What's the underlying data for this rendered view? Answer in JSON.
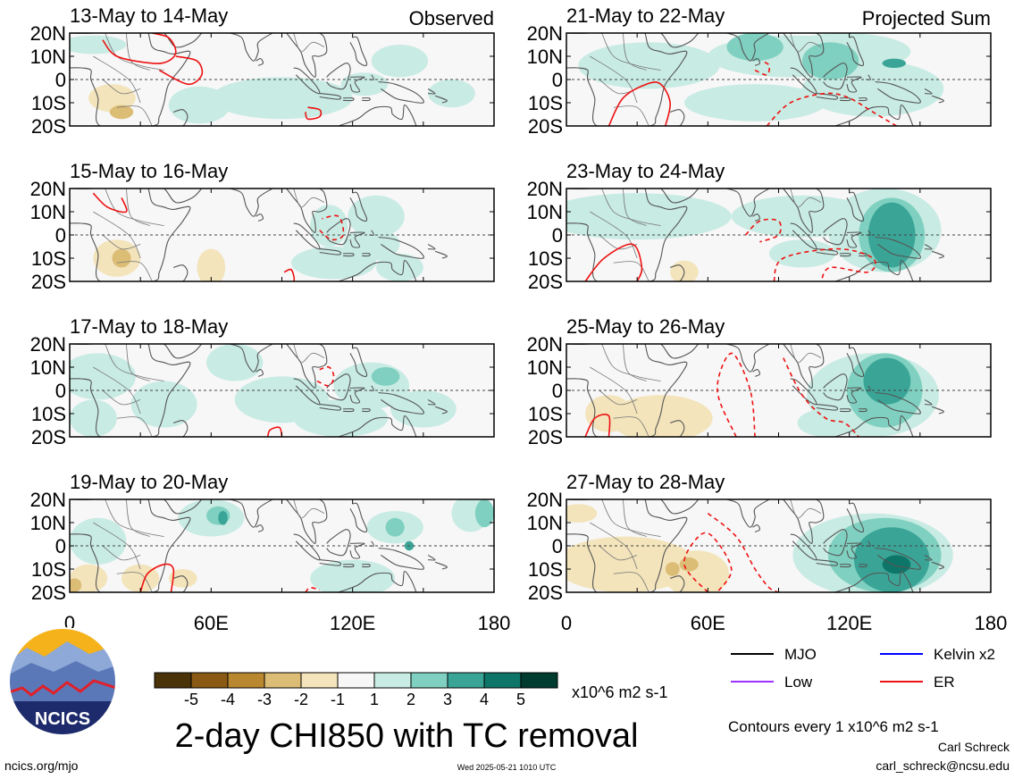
{
  "chart_data": {
    "type": "heatmap",
    "title": "2-day CHI850 with TC removal",
    "field_units": "x10^6 m2 s-1",
    "contour_note": "Contours every 1 x10^6 m2 s-1",
    "x_axis": {
      "range": [
        0,
        180
      ],
      "ticks": [
        "0",
        "60E",
        "120E",
        "180"
      ]
    },
    "y_axis": {
      "range": [
        -20,
        20
      ],
      "ticks": [
        "20N",
        "10N",
        "0",
        "10S",
        "20S"
      ]
    },
    "column_headers": {
      "left": "Observed",
      "right": "Projected Sum"
    },
    "colorbar": {
      "labels": [
        "-5",
        "-4",
        "-3",
        "-2",
        "-1",
        "1",
        "2",
        "3",
        "4",
        "5"
      ],
      "colors": [
        "#4a3209",
        "#8a5a14",
        "#b9872f",
        "#dcbd76",
        "#f3e4bb",
        "#f7f7f7",
        "#c8ebe3",
        "#7fd0c0",
        "#3aa597",
        "#0e7569",
        "#003c30"
      ]
    },
    "legend": [
      {
        "label": "MJO",
        "color": "#000000"
      },
      {
        "label": "Kelvin x2",
        "color": "#0000ff"
      },
      {
        "label": "Low",
        "color": "#9b30ff"
      },
      {
        "label": "ER",
        "color": "#ee1111"
      }
    ],
    "panels": [
      {
        "period": "13-May to 14-May",
        "header": "Observed",
        "blobs": [
          [
            10,
            15,
            14,
            4,
            1
          ],
          [
            55,
            -11,
            13,
            8,
            1
          ],
          [
            90,
            -8,
            30,
            9,
            1
          ],
          [
            140,
            8,
            12,
            7,
            1
          ],
          [
            162,
            -6,
            10,
            6,
            1
          ],
          [
            125,
            -2,
            10,
            5,
            1
          ],
          [
            18,
            -8,
            10,
            6,
            -1
          ],
          [
            22,
            -14,
            5,
            3,
            -2
          ]
        ],
        "contours": [
          {
            "type": "ER",
            "dashed": false,
            "pts": [
              [
                14,
                17
              ],
              [
                20,
                10
              ],
              [
                35,
                7
              ],
              [
                42,
                8
              ],
              [
                45,
                12
              ],
              [
                42,
                18
              ],
              [
                35,
                20
              ]
            ]
          },
          {
            "type": "ER",
            "dashed": false,
            "pts": [
              [
                38,
                4
              ],
              [
                50,
                -2
              ],
              [
                56,
                2
              ],
              [
                54,
                8
              ],
              [
                45,
                10
              ]
            ]
          },
          {
            "type": "ER",
            "dashed": false,
            "pts": [
              [
                101,
                -12
              ],
              [
                106,
                -13
              ],
              [
                106,
                -16
              ],
              [
                101,
                -17
              ],
              [
                100,
                -14
              ]
            ]
          }
        ]
      },
      {
        "period": "15-May to 16-May",
        "header": "",
        "blobs": [
          [
            110,
            4,
            8,
            9,
            1
          ],
          [
            130,
            8,
            12,
            9,
            1
          ],
          [
            128,
            -4,
            12,
            7,
            1
          ],
          [
            112,
            -12,
            18,
            7,
            1
          ],
          [
            140,
            -14,
            10,
            6,
            1
          ],
          [
            20,
            -10,
            10,
            8,
            -1
          ],
          [
            22,
            -10,
            4,
            4,
            -2
          ],
          [
            60,
            -14,
            6,
            8,
            -1
          ]
        ],
        "contours": [
          {
            "type": "ER",
            "dashed": false,
            "pts": [
              [
                10,
                18
              ],
              [
                16,
                12
              ],
              [
                24,
                10
              ],
              [
                22,
                16
              ]
            ]
          },
          {
            "type": "ER",
            "dashed": true,
            "pts": [
              [
                106,
                2
              ],
              [
                111,
                -2
              ],
              [
                116,
                0
              ],
              [
                114,
                8
              ],
              [
                107,
                7
              ]
            ]
          },
          {
            "type": "ER",
            "dashed": false,
            "pts": [
              [
                91,
                -16
              ],
              [
                94,
                -15
              ],
              [
                95,
                -20
              ],
              [
                90,
                -20
              ]
            ]
          }
        ]
      },
      {
        "period": "17-May to 18-May",
        "header": "",
        "blobs": [
          [
            12,
            6,
            16,
            10,
            1
          ],
          [
            10,
            -12,
            10,
            8,
            1
          ],
          [
            40,
            -6,
            14,
            10,
            1
          ],
          [
            70,
            12,
            12,
            8,
            1
          ],
          [
            90,
            -4,
            20,
            10,
            1
          ],
          [
            128,
            2,
            16,
            10,
            1
          ],
          [
            134,
            6,
            6,
            4,
            2
          ],
          [
            115,
            -12,
            20,
            8,
            1
          ],
          [
            150,
            -8,
            14,
            8,
            1
          ]
        ],
        "contours": [
          {
            "type": "ER",
            "dashed": true,
            "pts": [
              [
                105,
                4
              ],
              [
                110,
                2
              ],
              [
                112,
                6
              ],
              [
                110,
                10
              ],
              [
                106,
                9
              ]
            ]
          },
          {
            "type": "ER",
            "dashed": false,
            "pts": [
              [
                84,
                -20
              ],
              [
                85,
                -17
              ],
              [
                89,
                -16
              ],
              [
                90,
                -20
              ]
            ]
          }
        ]
      },
      {
        "period": "19-May to 20-May",
        "header": "",
        "blobs": [
          [
            60,
            12,
            14,
            8,
            1
          ],
          [
            63,
            13,
            5,
            4,
            2
          ],
          [
            65,
            12,
            2,
            3,
            3
          ],
          [
            12,
            2,
            12,
            10,
            1
          ],
          [
            138,
            8,
            12,
            7,
            1
          ],
          [
            138,
            8,
            4,
            4,
            2
          ],
          [
            144,
            0,
            2,
            2,
            3
          ],
          [
            120,
            -14,
            18,
            8,
            1
          ],
          [
            170,
            14,
            8,
            8,
            1
          ],
          [
            176,
            14,
            4,
            6,
            2
          ],
          [
            8,
            -14,
            8,
            6,
            -1
          ],
          [
            2,
            -17,
            3,
            3,
            -2
          ],
          [
            30,
            -14,
            8,
            6,
            -1
          ],
          [
            48,
            -14,
            6,
            4,
            -1
          ]
        ],
        "contours": [
          {
            "type": "ER",
            "dashed": false,
            "pts": [
              [
                30,
                -20
              ],
              [
                33,
                -12
              ],
              [
                40,
                -8
              ],
              [
                44,
                -10
              ],
              [
                43,
                -20
              ]
            ]
          },
          {
            "type": "ER",
            "dashed": true,
            "pts": [
              [
                100,
                -20
              ],
              [
                102,
                -18
              ],
              [
                106,
                -19
              ]
            ]
          }
        ]
      },
      {
        "period": "21-May to 22-May",
        "header": "Projected Sum",
        "blobs": [
          [
            35,
            6,
            30,
            10,
            1
          ],
          [
            95,
            10,
            35,
            9,
            1
          ],
          [
            80,
            14,
            12,
            6,
            2
          ],
          [
            118,
            12,
            28,
            8,
            1
          ],
          [
            112,
            8,
            12,
            8,
            2
          ],
          [
            130,
            -4,
            30,
            12,
            1
          ],
          [
            80,
            -10,
            30,
            8,
            1
          ],
          [
            139,
            7,
            5,
            2,
            3
          ]
        ],
        "contours": [
          {
            "type": "ER",
            "dashed": false,
            "pts": [
              [
                18,
                -20
              ],
              [
                24,
                -8
              ],
              [
                34,
                -2
              ],
              [
                40,
                -2
              ],
              [
                44,
                -10
              ],
              [
                42,
                -20
              ]
            ]
          },
          {
            "type": "ER",
            "dashed": true,
            "pts": [
              [
                80,
                4
              ],
              [
                85,
                2
              ],
              [
                86,
                6
              ],
              [
                83,
                8
              ]
            ]
          },
          {
            "type": "ER",
            "dashed": true,
            "pts": [
              [
                85,
                -20
              ],
              [
                95,
                -10
              ],
              [
                110,
                -6
              ],
              [
                120,
                -8
              ],
              [
                130,
                -14
              ],
              [
                140,
                -20
              ]
            ]
          }
        ]
      },
      {
        "period": "23-May to 24-May",
        "header": "",
        "blobs": [
          [
            30,
            8,
            40,
            10,
            1
          ],
          [
            100,
            8,
            30,
            9,
            1
          ],
          [
            135,
            2,
            24,
            18,
            1
          ],
          [
            138,
            0,
            14,
            16,
            2
          ],
          [
            138,
            0,
            10,
            14,
            3
          ],
          [
            100,
            -8,
            14,
            6,
            1
          ],
          [
            50,
            -16,
            6,
            5,
            -1
          ]
        ],
        "contours": [
          {
            "type": "ER",
            "dashed": false,
            "pts": [
              [
                8,
                -20
              ],
              [
                16,
                -10
              ],
              [
                28,
                -4
              ],
              [
                32,
                -14
              ],
              [
                30,
                -20
              ]
            ]
          },
          {
            "type": "ER",
            "dashed": true,
            "pts": [
              [
                76,
                0
              ],
              [
                82,
                6
              ],
              [
                90,
                6
              ],
              [
                90,
                0
              ],
              [
                82,
                -3
              ]
            ]
          },
          {
            "type": "ER",
            "dashed": true,
            "pts": [
              [
                88,
                -20
              ],
              [
                92,
                -10
              ],
              [
                115,
                -6
              ],
              [
                130,
                -10
              ],
              [
                128,
                -16
              ],
              [
                112,
                -14
              ],
              [
                108,
                -20
              ]
            ]
          }
        ]
      },
      {
        "period": "25-May to 26-May",
        "header": "",
        "blobs": [
          [
            40,
            -12,
            22,
            10,
            -1
          ],
          [
            18,
            -10,
            10,
            8,
            -1
          ],
          [
            130,
            -2,
            28,
            18,
            1
          ],
          [
            135,
            0,
            16,
            16,
            2
          ],
          [
            136,
            4,
            10,
            10,
            3
          ],
          [
            110,
            -14,
            12,
            6,
            1
          ]
        ],
        "contours": [
          {
            "type": "ER",
            "dashed": false,
            "pts": [
              [
                8,
                -20
              ],
              [
                12,
                -12
              ],
              [
                18,
                -11
              ],
              [
                18,
                -20
              ]
            ]
          },
          {
            "type": "ER",
            "dashed": true,
            "pts": [
              [
                72,
                -20
              ],
              [
                64,
                0
              ],
              [
                70,
                16
              ],
              [
                78,
                0
              ],
              [
                80,
                -20
              ]
            ]
          },
          {
            "type": "ER",
            "dashed": true,
            "pts": [
              [
                92,
                14
              ],
              [
                100,
                -2
              ],
              [
                110,
                -12
              ],
              [
                118,
                -14
              ],
              [
                124,
                -20
              ]
            ]
          }
        ]
      },
      {
        "period": "27-May to 28-May",
        "header": "",
        "blobs": [
          [
            25,
            -8,
            30,
            12,
            -1
          ],
          [
            55,
            -12,
            14,
            10,
            -1
          ],
          [
            52,
            -8,
            4,
            3,
            -2
          ],
          [
            45,
            -10,
            3,
            3,
            -2
          ],
          [
            5,
            14,
            8,
            4,
            -1
          ],
          [
            130,
            -4,
            34,
            18,
            1
          ],
          [
            135,
            -4,
            24,
            16,
            2
          ],
          [
            138,
            -6,
            16,
            14,
            3
          ],
          [
            140,
            -8,
            6,
            4,
            4
          ]
        ],
        "contours": [
          {
            "type": "ER",
            "dashed": true,
            "pts": [
              [
                60,
                -20
              ],
              [
                50,
                -8
              ],
              [
                56,
                4
              ],
              [
                62,
                4
              ],
              [
                70,
                -10
              ],
              [
                64,
                -20
              ]
            ]
          },
          {
            "type": "ER",
            "dashed": true,
            "pts": [
              [
                60,
                14
              ],
              [
                72,
                4
              ],
              [
                80,
                -10
              ],
              [
                86,
                -18
              ],
              [
                90,
                -20
              ]
            ]
          }
        ]
      }
    ]
  },
  "footer": {
    "logo_text": "NCICS",
    "url": "ncics.org/mjo",
    "timestamp": "Wed 2025-05-21 1010 UTC",
    "author": "Carl Schreck",
    "email": "carl_schreck@ncsu.edu"
  }
}
